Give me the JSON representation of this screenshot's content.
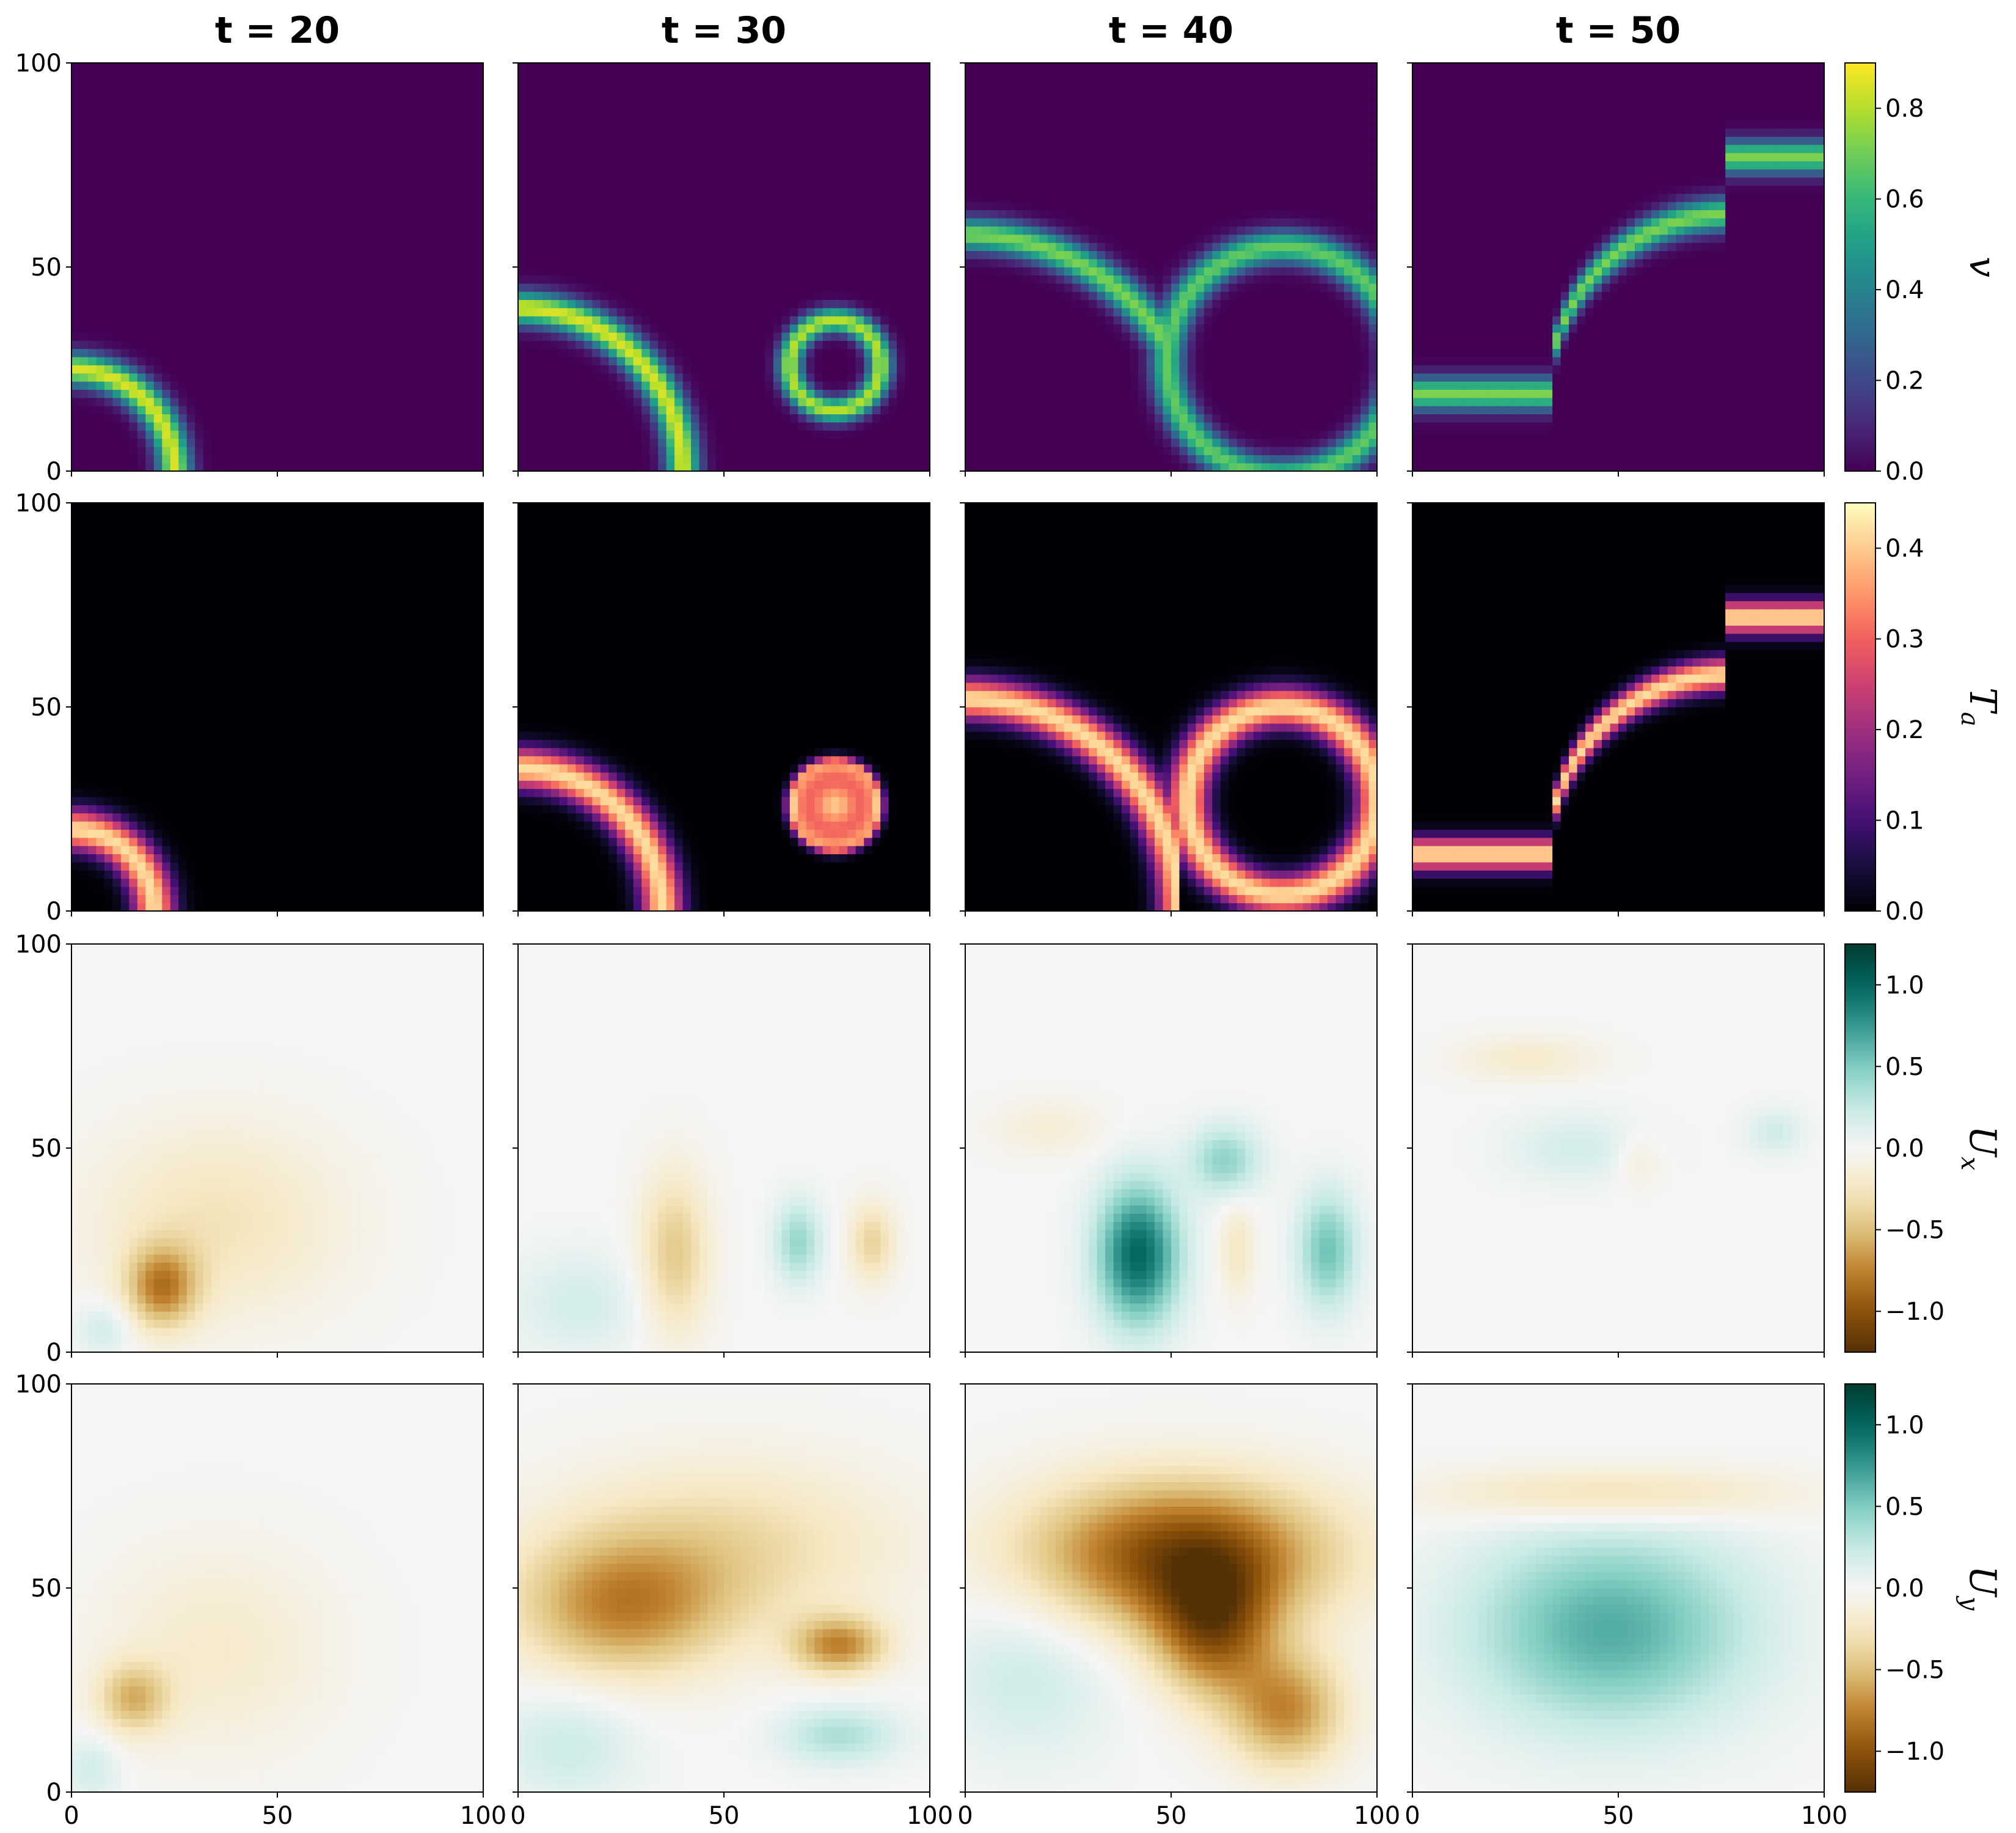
{
  "chart_data": {
    "type": "heatmap",
    "layout": "4x4 grid of heatmap panels; rows share a colorbar on the right",
    "columns": [
      {
        "title": "t = 20",
        "t": 20
      },
      {
        "title": "t = 30",
        "t": 30
      },
      {
        "title": "t = 40",
        "t": 40
      },
      {
        "title": "t = 50",
        "t": 50
      }
    ],
    "x_range": [
      0,
      100
    ],
    "y_range": [
      0,
      100
    ],
    "x_ticks": [
      "0",
      "50",
      "100"
    ],
    "y_ticks": [
      "0",
      "50",
      "100"
    ],
    "rows": [
      {
        "variable": "v",
        "label_main": "v",
        "label_sub": "",
        "colormap": "viridis",
        "vmin": 0.0,
        "vmax": 0.9,
        "colorbar_ticks": [
          "0.0",
          "0.2",
          "0.4",
          "0.6",
          "0.8"
        ],
        "colorbar_tick_values": [
          0.0,
          0.2,
          0.4,
          0.6,
          0.8
        ],
        "features": [
          [
            {
              "kind": "ring",
              "cx": 0,
              "cy": 0,
              "r": 25,
              "w": 4,
              "amp": 0.85
            }
          ],
          [
            {
              "kind": "ring",
              "cx": 0,
              "cy": 0,
              "r": 40,
              "w": 4,
              "amp": 0.85
            },
            {
              "kind": "ring",
              "cx": 77,
              "cy": 26,
              "r": 11,
              "w": 3,
              "amp": 0.8
            }
          ],
          [
            {
              "kind": "ring",
              "cx": 0,
              "cy": 0,
              "r": 58,
              "w": 4,
              "amp": 0.72,
              "clip": "x<48"
            },
            {
              "kind": "ring",
              "cx": 77,
              "cy": 27,
              "r": 28,
              "w": 4,
              "amp": 0.68
            }
          ],
          [
            {
              "kind": "front",
              "note": "upper envelope of two circles, minimum near x = 48, y = 57",
              "amp": 0.72
            }
          ]
        ]
      },
      {
        "variable": "T_a",
        "label_main": "T",
        "label_sub": "a",
        "colormap": "magma",
        "vmin": 0.0,
        "vmax": 0.45,
        "colorbar_ticks": [
          "0.0",
          "0.1",
          "0.2",
          "0.3",
          "0.4"
        ],
        "colorbar_tick_values": [
          0.0,
          0.1,
          0.2,
          0.3,
          0.4
        ],
        "features": [
          [
            {
              "kind": "ring",
              "cx": 0,
              "cy": 0,
              "r": 20,
              "w": 5,
              "amp": 0.42
            }
          ],
          [
            {
              "kind": "ring",
              "cx": 0,
              "cy": 0,
              "r": 35,
              "w": 5,
              "amp": 0.42
            },
            {
              "kind": "disk",
              "cx": 77,
              "cy": 26,
              "r": 10,
              "amp": 0.4
            }
          ],
          [
            {
              "kind": "ring",
              "cx": 0,
              "cy": 0,
              "r": 52,
              "w": 5,
              "amp": 0.42,
              "clip": "x<52"
            },
            {
              "kind": "ring",
              "cx": 77,
              "cy": 27,
              "r": 23,
              "w": 5,
              "amp": 0.42
            }
          ],
          [
            {
              "kind": "front",
              "note": "band just below the v-front, minimum near x = 48, y = 50",
              "amp": 0.42
            }
          ]
        ]
      },
      {
        "variable": "U_x",
        "label_main": "U",
        "label_sub": "x",
        "colormap": "BrBG",
        "vmin": -1.25,
        "vmax": 1.25,
        "colorbar_ticks": [
          "−1.0",
          "−0.5",
          "0.0",
          "0.5",
          "1.0"
        ],
        "colorbar_tick_values": [
          -1.0,
          -0.5,
          0.0,
          0.5,
          1.0
        ],
        "features": [
          [
            {
              "kind": "blob",
              "cx": 22,
              "cy": 16,
              "sx": 6,
              "sy": 7,
              "amp": -0.7
            },
            {
              "kind": "blob",
              "cx": 35,
              "cy": 32,
              "sx": 22,
              "sy": 17,
              "amp": -0.28
            },
            {
              "kind": "blob",
              "cx": 8,
              "cy": 6,
              "sx": 5,
              "sy": 5,
              "amp": 0.22
            }
          ],
          [
            {
              "kind": "blob",
              "cx": 38,
              "cy": 24,
              "sx": 6,
              "sy": 14,
              "amp": -0.45
            },
            {
              "kind": "blob",
              "cx": 68,
              "cy": 27,
              "sx": 4,
              "sy": 7,
              "amp": 0.42
            },
            {
              "kind": "blob",
              "cx": 86,
              "cy": 27,
              "sx": 4,
              "sy": 7,
              "amp": -0.38
            },
            {
              "kind": "blob",
              "cx": 15,
              "cy": 12,
              "sx": 12,
              "sy": 9,
              "amp": 0.18
            }
          ],
          [
            {
              "kind": "blob",
              "cx": 42,
              "cy": 24,
              "sx": 7,
              "sy": 12,
              "amp": 1.0
            },
            {
              "kind": "blob",
              "cx": 88,
              "cy": 25,
              "sx": 5,
              "sy": 10,
              "amp": 0.55
            },
            {
              "kind": "blob",
              "cx": 63,
              "cy": 47,
              "sx": 6,
              "sy": 6,
              "amp": 0.45
            },
            {
              "kind": "blob",
              "cx": 66,
              "cy": 25,
              "sx": 3,
              "sy": 8,
              "amp": -0.25
            },
            {
              "kind": "blob",
              "cx": 20,
              "cy": 55,
              "sx": 10,
              "sy": 5,
              "amp": -0.15
            }
          ],
          [
            {
              "kind": "blob",
              "cx": 28,
              "cy": 72,
              "sx": 12,
              "sy": 4,
              "amp": -0.2
            },
            {
              "kind": "blob",
              "cx": 40,
              "cy": 50,
              "sx": 12,
              "sy": 6,
              "amp": 0.18
            },
            {
              "kind": "blob",
              "cx": 88,
              "cy": 54,
              "sx": 5,
              "sy": 4,
              "amp": 0.2
            },
            {
              "kind": "blob",
              "cx": 55,
              "cy": 47,
              "sx": 4,
              "sy": 5,
              "amp": -0.16
            }
          ]
        ]
      },
      {
        "variable": "U_y",
        "label_main": "U",
        "label_sub": "y",
        "colormap": "BrBG",
        "vmin": -1.25,
        "vmax": 1.25,
        "colorbar_ticks": [
          "−1.0",
          "−0.5",
          "0.0",
          "0.5",
          "1.0"
        ],
        "colorbar_tick_values": [
          -1.0,
          -0.5,
          0.0,
          0.5,
          1.0
        ],
        "features": [
          [
            {
              "kind": "blob",
              "cx": 15,
              "cy": 23,
              "sx": 6,
              "sy": 6,
              "amp": -0.5
            },
            {
              "kind": "blob",
              "cx": 35,
              "cy": 35,
              "sx": 20,
              "sy": 18,
              "amp": -0.2
            },
            {
              "kind": "blob",
              "cx": 5,
              "cy": 6,
              "sx": 5,
              "sy": 6,
              "amp": 0.2
            }
          ],
          [
            {
              "kind": "blob",
              "cx": 25,
              "cy": 45,
              "sx": 18,
              "sy": 12,
              "amp": -0.65
            },
            {
              "kind": "blob",
              "cx": 78,
              "cy": 36,
              "sx": 8,
              "sy": 5,
              "amp": -0.7
            },
            {
              "kind": "blob",
              "cx": 50,
              "cy": 60,
              "sx": 30,
              "sy": 15,
              "amp": -0.35
            },
            {
              "kind": "blob",
              "cx": 78,
              "cy": 14,
              "sx": 10,
              "sy": 5,
              "amp": 0.35
            },
            {
              "kind": "blob",
              "cx": 12,
              "cy": 12,
              "sx": 12,
              "sy": 10,
              "amp": 0.22
            }
          ],
          [
            {
              "kind": "blob",
              "cx": 52,
              "cy": 58,
              "sx": 26,
              "sy": 13,
              "amp": -1.05
            },
            {
              "kind": "blob",
              "cx": 60,
              "cy": 40,
              "sx": 10,
              "sy": 12,
              "amp": -0.8
            },
            {
              "kind": "blob",
              "cx": 78,
              "cy": 20,
              "sx": 10,
              "sy": 10,
              "amp": -0.7
            },
            {
              "kind": "blob",
              "cx": 15,
              "cy": 30,
              "sx": 15,
              "sy": 15,
              "amp": 0.22
            }
          ],
          [
            {
              "kind": "blob",
              "cx": 48,
              "cy": 40,
              "sx": 24,
              "sy": 17,
              "amp": 0.65
            },
            {
              "kind": "blob",
              "cx": 48,
              "cy": 73,
              "sx": 30,
              "sy": 5,
              "amp": -0.35
            }
          ]
        ]
      }
    ]
  }
}
